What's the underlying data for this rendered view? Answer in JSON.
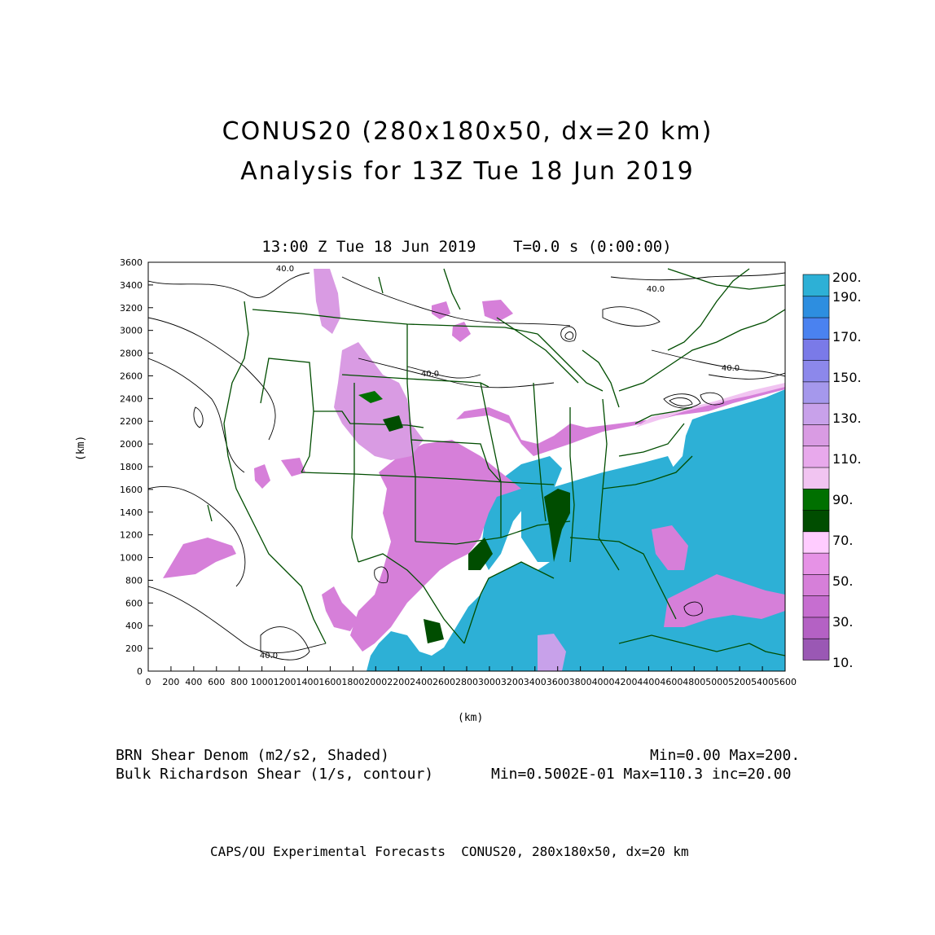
{
  "title": {
    "line1": "CONUS20 (280x180x50, dx=20 km)",
    "line2": "Analysis for 13Z Tue 18 Jun 2019"
  },
  "subtitle": "13:00 Z Tue 18 Jun 2019    T=0.0 s (0:00:00)",
  "axes": {
    "x_label": "(km)",
    "y_label": "(km)",
    "x_ticks": [
      "0",
      "200",
      "400",
      "600",
      "800",
      "1000",
      "1200",
      "1400",
      "1600",
      "1800",
      "2000",
      "2200",
      "2400",
      "2600",
      "2800",
      "3000",
      "3200",
      "3400",
      "3600",
      "3800",
      "4000",
      "4200",
      "4400",
      "4600",
      "4800",
      "5000",
      "5200",
      "5400",
      "5600"
    ],
    "y_ticks": [
      "0",
      "200",
      "400",
      "600",
      "800",
      "1000",
      "1200",
      "1400",
      "1600",
      "1800",
      "2000",
      "2200",
      "2400",
      "2600",
      "2800",
      "3000",
      "3200",
      "3400",
      "3600"
    ],
    "x_range": [
      0,
      5600
    ],
    "y_range": [
      0,
      3600
    ]
  },
  "contour_labels": [
    "40.0",
    "40.0",
    "40.0",
    "40.0",
    "40.0"
  ],
  "colorbar": {
    "labels": [
      "200.",
      "190.",
      "170.",
      "150.",
      "130.",
      "110.",
      "90.",
      "70.",
      "50.",
      "30.",
      "10."
    ],
    "colors": [
      "#9a58b4",
      "#b461c4",
      "#c66ed0",
      "#d67fd9",
      "#e692e6",
      "#ffccff",
      "#004d00",
      "#007000",
      "#f1c4f1",
      "#e8a9ec",
      "#d99be3",
      "#c8a1ea",
      "#a598ec",
      "#8c88eb",
      "#7a7ae8",
      "#4a82f0",
      "#2d8ee0",
      "#2db0d6"
    ]
  },
  "legend": {
    "line1_left": "BRN Shear Denom (m2/s2, Shaded)",
    "line1_right": "Min=0.00 Max=200.",
    "line2_left": "Bulk Richardson Shear (1/s, contour)",
    "line2_right": "Min=0.5002E-01 Max=110.3 inc=20.00"
  },
  "footer": "CAPS/OU Experimental Forecasts  CONUS20, 280x180x50, dx=20 km",
  "colors": {
    "ocean_high": "#2db0d6",
    "purple": "#c673d6",
    "light_purple": "#e6a3ec",
    "border_green": "#004d00",
    "contour": "#000000"
  }
}
